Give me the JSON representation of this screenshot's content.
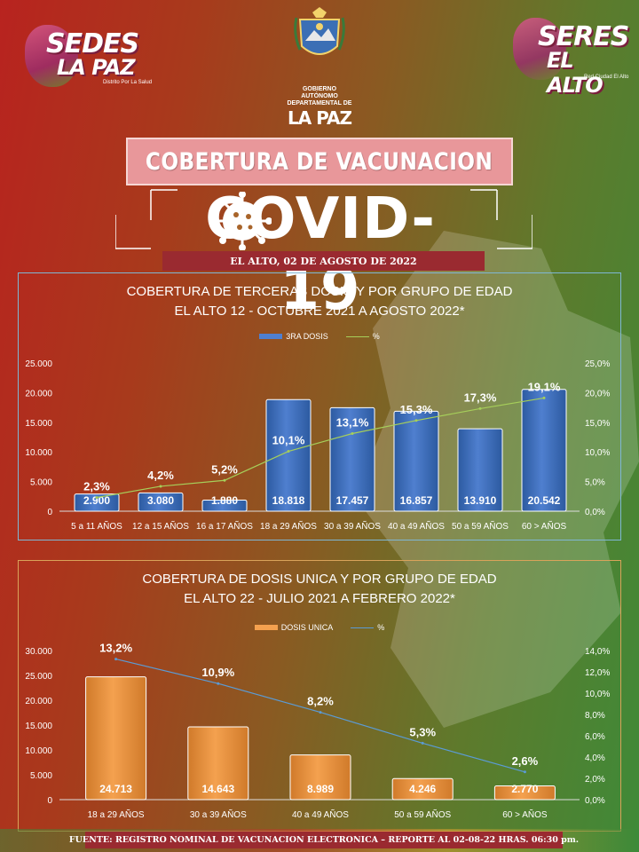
{
  "header": {
    "logo_left": {
      "line1": "SEDES",
      "line2": "LA PAZ",
      "sub": "Distrito Por La Salud"
    },
    "logo_center": {
      "gobierno": "GOBIERNO AUTÓNOMO",
      "departamental": "DEPARTAMENTAL DE",
      "lapaz": "LA PAZ"
    },
    "logo_right": {
      "line1": "SERES",
      "line2": "EL ALTO",
      "sub": "Red Ciudad El Alto"
    },
    "title": "COBERTURA DE VACUNACION",
    "covid": "COVID-19",
    "date": "EL ALTO, 02 DE AGOSTO DE 2022"
  },
  "colors": {
    "bar_blue": "#4f7fcf",
    "bar_orange": "#f4a14f",
    "line_green": "#a6cf5a",
    "line_blue": "#5b9bd5"
  },
  "chart_data": [
    {
      "type": "bar",
      "title": "COBERTURA DE TERCERAS DOSIS Y POR GRUPO DE EDAD",
      "subtitle": "EL ALTO 12 - OCTUBRE 2021 A AGOSTO 2022*",
      "categories": [
        "5 a 11 AÑOS",
        "12 a 15 AÑOS",
        "16 a 17 AÑOS",
        "18 a 29 AÑOS",
        "30 a 39 AÑOS",
        "40 a 49 AÑOS",
        "50 a 59 AÑOS",
        "60 > AÑOS"
      ],
      "series": [
        {
          "name": "3RA DOSIS",
          "type": "bar",
          "axis": "left",
          "values": [
            2900,
            3080,
            1880,
            18818,
            17457,
            16857,
            13910,
            20542
          ],
          "labels": [
            "2.900",
            "3.080",
            "1.880",
            "18.818",
            "17.457",
            "16.857",
            "13.910",
            "20.542"
          ]
        },
        {
          "name": "%",
          "type": "line",
          "axis": "right",
          "values": [
            2.3,
            4.2,
            5.2,
            10.1,
            13.1,
            15.3,
            17.3,
            19.1
          ],
          "labels": [
            "2,3%",
            "4,2%",
            "5,2%",
            "10,1%",
            "13,1%",
            "15,3%",
            "17,3%",
            "19,1%"
          ]
        }
      ],
      "ylim_left": [
        0,
        25000
      ],
      "ylim_right": [
        0,
        25
      ],
      "yticks_left": [
        "0",
        "5.000",
        "10.000",
        "15.000",
        "20.000",
        "25.000"
      ],
      "yticks_right": [
        "0,0%",
        "5,0%",
        "10,0%",
        "15,0%",
        "20,0%",
        "25,0%"
      ],
      "legend_position": "top-center",
      "grid": false
    },
    {
      "type": "bar",
      "title": "COBERTURA DE DOSIS UNICA Y POR GRUPO DE EDAD",
      "subtitle": "EL ALTO 22 - JULIO 2021 A FEBRERO 2022*",
      "categories": [
        "18 a 29 AÑOS",
        "30 a 39 AÑOS",
        "40 a 49 AÑOS",
        "50 a 59 AÑOS",
        "60 > AÑOS"
      ],
      "series": [
        {
          "name": "DOSIS UNICA",
          "type": "bar",
          "axis": "left",
          "values": [
            24713,
            14643,
            8989,
            4246,
            2770
          ],
          "labels": [
            "24.713",
            "14.643",
            "8.989",
            "4.246",
            "2.770"
          ]
        },
        {
          "name": "%",
          "type": "line",
          "axis": "right",
          "values": [
            13.2,
            10.9,
            8.2,
            5.3,
            2.6
          ],
          "labels": [
            "13,2%",
            "10,9%",
            "8,2%",
            "5,3%",
            "2,6%"
          ]
        }
      ],
      "ylim_left": [
        0,
        30000
      ],
      "ylim_right": [
        0,
        14
      ],
      "yticks_left": [
        "0",
        "5.000",
        "10.000",
        "15.000",
        "20.000",
        "25.000",
        "30.000"
      ],
      "yticks_right": [
        "0,0%",
        "2,0%",
        "4,0%",
        "6,0%",
        "8,0%",
        "10,0%",
        "12,0%",
        "14,0%"
      ],
      "legend_position": "top-center",
      "grid": false
    }
  ],
  "footer": "FUENTE: REGISTRO NOMINAL DE VACUNACION ELECTRONICA – REPORTE AL 02-08-22 HRAS. 06:30 pm."
}
